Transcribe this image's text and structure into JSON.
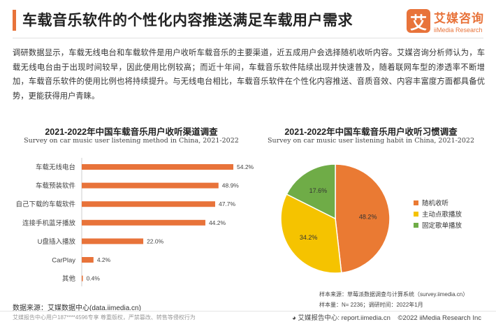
{
  "header": {
    "title": "车载音乐软件的个性化内容推送满足车载用户需求",
    "logo_mark": "艾",
    "logo_cn": "艾媒咨询",
    "logo_en": "iiMedia Research"
  },
  "intro": "调研数据显示，车载无线电台和车载软件是用户收听车载音乐的主要渠道，近五成用户会选择随机收听内容。艾媒咨询分析师认为，车载无线电台由于出现时间较早，因此使用比例较高；而近十年间，车载音乐软件陆续出现并快速普及，随着联网车型的渗透率不断增加，车载音乐软件的使用比例也将持续提升。与无线电台相比，车载音乐软件在个性化内容推送、音质音效、内容丰富度方面都具备优势，更能获得用户青睐。",
  "colors": {
    "accent": "#e8733a",
    "pie_random": "#ea7a33",
    "pie_active": "#f5c300",
    "pie_fixed": "#6fac47"
  },
  "chart_data": [
    {
      "type": "bar",
      "orientation": "horizontal",
      "title": "2021-2022年中国车载音乐用户收听渠道调查",
      "subtitle": "Survey on car music user listening method in China, 2021-2022",
      "categories": [
        "车载无线电台",
        "车载预装软件",
        "自己下载的车载软件",
        "连接手机蓝牙播放",
        "U盘插入播放",
        "CarPlay",
        "其他"
      ],
      "values": [
        54.2,
        48.9,
        47.7,
        44.2,
        22.0,
        4.2,
        0.4
      ],
      "value_labels": [
        "54.2%",
        "48.9%",
        "47.7%",
        "44.2%",
        "22.0%",
        "4.2%",
        "0.4%"
      ],
      "unit": "%",
      "grid": false
    },
    {
      "type": "pie",
      "title": "2021-2022年中国车载音乐用户收听习惯调查",
      "subtitle": "Survey on car music user listening habit in China, 2021-2022",
      "labels": [
        "随机收听",
        "主动点歌播放",
        "固定歌单播放"
      ],
      "values": [
        48.2,
        34.2,
        17.6
      ],
      "value_labels": [
        "48.2%",
        "34.2%",
        "17.6%"
      ],
      "legend": "right"
    }
  ],
  "footer": {
    "source": "数据来源：艾媒数据中心(data.iimedia.cn)",
    "sample_source": "样本来源：草莓派数据调查与计算系统（survey.iimedia.cn）",
    "sample_info": "样本量：N= 2236；调研时间：2022年1月",
    "watermark": "艾媒报告中心用户187****4596专享 尊重版权，严禁篡改、转售等侵权行为",
    "report_center": "艾媒报告中心: report.iimedia.cn",
    "copyright": "©2022  iiMedia Research  Inc"
  }
}
